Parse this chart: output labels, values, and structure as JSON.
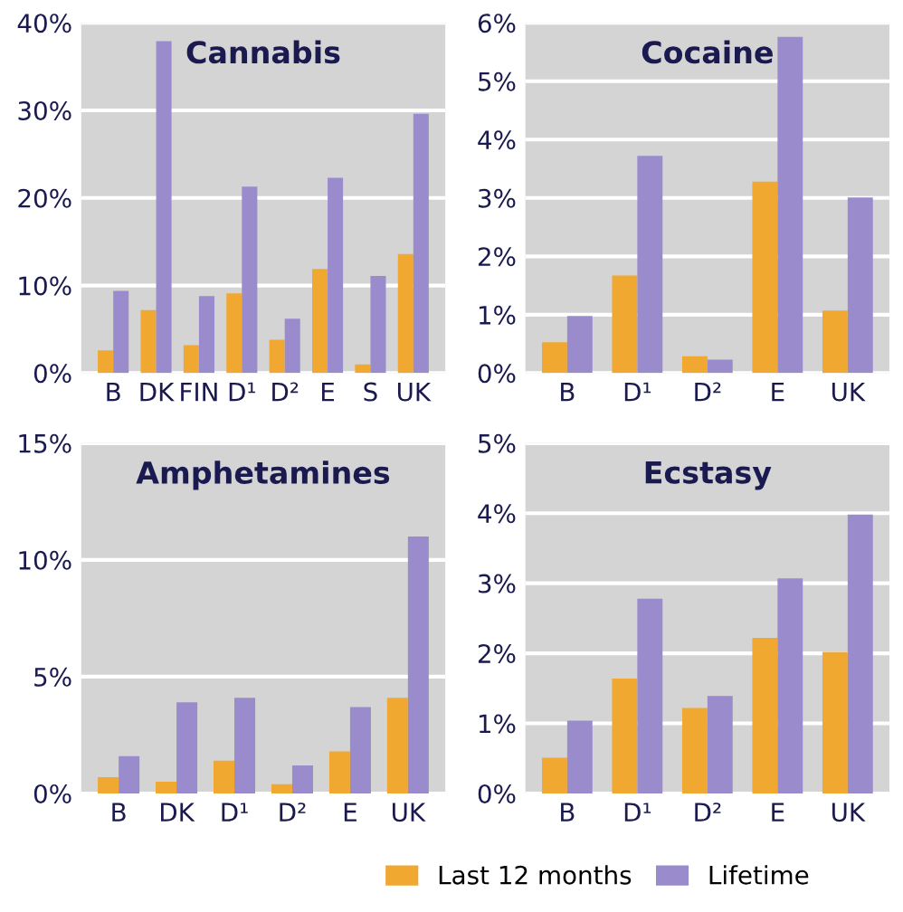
{
  "chart_data": [
    {
      "type": "bar",
      "title": "Cannabis",
      "categories": [
        "B",
        "DK",
        "FIN",
        "D¹",
        "D²",
        "E",
        "S",
        "UK"
      ],
      "series": [
        {
          "color": "#f0a830",
          "values": [
            2.6,
            7.2,
            3.2,
            9.1,
            3.8,
            11.9,
            1.0,
            13.6
          ]
        },
        {
          "color": "#9a8ccc",
          "values": [
            9.4,
            37.9,
            8.8,
            21.3,
            6.2,
            22.3,
            11.1,
            29.6
          ]
        }
      ],
      "ylim": [
        0,
        40
      ],
      "yticks": [
        {
          "value": 0,
          "label": "0%"
        },
        {
          "value": 10,
          "label": "10%"
        },
        {
          "value": 20,
          "label": "20%"
        },
        {
          "value": 30,
          "label": "30%"
        },
        {
          "value": 40,
          "label": "40%"
        }
      ],
      "grid": "y"
    },
    {
      "type": "bar",
      "title": "Cocaine",
      "categories": [
        "B",
        "D¹",
        "D²",
        "E",
        "UK"
      ],
      "series": [
        {
          "color": "#f0a830",
          "values": [
            0.53,
            1.67,
            0.29,
            3.28,
            1.07
          ]
        },
        {
          "color": "#9a8ccc",
          "values": [
            0.98,
            3.72,
            0.23,
            5.76,
            3.01
          ]
        }
      ],
      "ylim": [
        0,
        6
      ],
      "yticks": [
        {
          "value": 0,
          "label": "0%"
        },
        {
          "value": 1,
          "label": "1%"
        },
        {
          "value": 2,
          "label": "2%"
        },
        {
          "value": 3,
          "label": "3%"
        },
        {
          "value": 4,
          "label": "4%"
        },
        {
          "value": 5,
          "label": "5%"
        },
        {
          "value": 6,
          "label": "6%"
        }
      ],
      "grid": "y"
    },
    {
      "type": "bar",
      "title": "Amphetamines",
      "categories": [
        "B",
        "DK",
        "D¹",
        "D²",
        "E",
        "UK"
      ],
      "series": [
        {
          "color": "#f0a830",
          "values": [
            0.7,
            0.5,
            1.4,
            0.4,
            1.8,
            4.1
          ]
        },
        {
          "color": "#9a8ccc",
          "values": [
            1.6,
            3.9,
            4.1,
            1.2,
            3.7,
            11.0
          ]
        }
      ],
      "ylim": [
        0,
        15
      ],
      "yticks": [
        {
          "value": 0,
          "label": "0%"
        },
        {
          "value": 5,
          "label": "5%"
        },
        {
          "value": 10,
          "label": "10%"
        },
        {
          "value": 15,
          "label": "15%"
        }
      ],
      "grid": "y"
    },
    {
      "type": "bar",
      "title": "Ecstasy",
      "categories": [
        "B",
        "D¹",
        "D²",
        "E",
        "UK"
      ],
      "series": [
        {
          "name": "Last 12 months",
          "color": "#f0a830",
          "values": [
            0.51,
            1.64,
            1.22,
            2.22,
            2.02
          ]
        },
        {
          "name": "Lifetime",
          "color": "#9a8ccc",
          "values": [
            1.04,
            2.78,
            1.39,
            3.07,
            3.98
          ]
        }
      ],
      "ylim": [
        0,
        5
      ],
      "yticks": [
        {
          "value": 0,
          "label": "0%"
        },
        {
          "value": 1,
          "label": "1%"
        },
        {
          "value": 2,
          "label": "2%"
        },
        {
          "value": 3,
          "label": "3%"
        },
        {
          "value": 4,
          "label": "4%"
        },
        {
          "value": 5,
          "label": "5%"
        }
      ],
      "grid": "y",
      "legend": "bottom"
    }
  ]
}
